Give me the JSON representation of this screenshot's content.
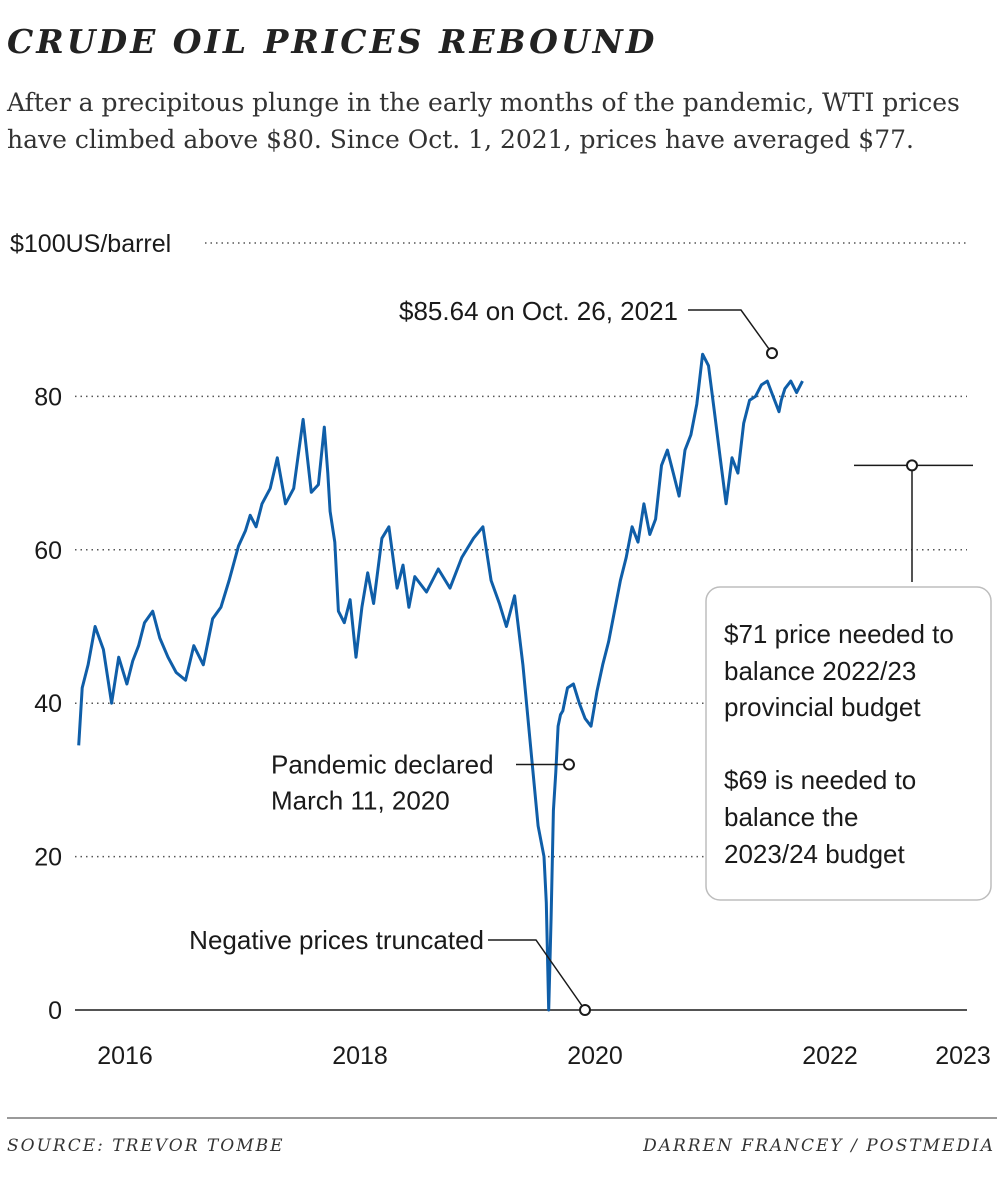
{
  "title": "CRUDE OIL PRICES REBOUND",
  "subtitle": "After a precipitous plunge in the early months of the pandemic, WTI prices have climbed above $80. Since Oct. 1, 2021, prices have averaged $77.",
  "source": "SOURCE: TREVOR TOMBE",
  "credit": "DARREN FRANCEY / POSTMEDIA",
  "colors": {
    "line": "#0f5ea8",
    "grid": "#555555",
    "axis": "#1a1a1a",
    "box_border": "#bdbdbd"
  },
  "chart_data": {
    "type": "line",
    "title": "CRUDE OIL PRICES REBOUND",
    "ylabel": "$100US/barrel",
    "xlabel": "",
    "ylim": [
      0,
      100
    ],
    "xlim": [
      2015.5,
      2023
    ],
    "y_ticks": [
      {
        "value": 0,
        "label": "0"
      },
      {
        "value": 20,
        "label": "20"
      },
      {
        "value": 40,
        "label": "40"
      },
      {
        "value": 60,
        "label": "60"
      },
      {
        "value": 80,
        "label": "80"
      },
      {
        "value": 100,
        "label": "$100US/barrel"
      }
    ],
    "x_ticks": [
      {
        "value": 2016,
        "label": "2016"
      },
      {
        "value": 2018,
        "label": "2018"
      },
      {
        "value": 2020,
        "label": "2020"
      },
      {
        "value": 2022,
        "label": "2022"
      },
      {
        "value": 2023,
        "label": "2023"
      }
    ],
    "grid": "horizontal dotted",
    "series": [
      {
        "x": [
          2015.64,
          2015.67,
          2015.72,
          2015.78,
          2015.85,
          2015.92,
          2015.98,
          2016.05,
          2016.1,
          2016.15,
          2016.2,
          2016.27,
          2016.33,
          2016.4,
          2016.47,
          2016.55,
          2016.62,
          2016.7,
          2016.78,
          2016.85,
          2016.92,
          2017.0,
          2017.06,
          2017.1,
          2017.15,
          2017.2,
          2017.27,
          2017.33,
          2017.4,
          2017.47,
          2017.55,
          2017.62,
          2017.68,
          2017.73,
          2017.76,
          2017.78,
          2017.82,
          2017.85,
          2017.9,
          2017.95,
          2018.0,
          2018.05,
          2018.1,
          2018.15,
          2018.22,
          2018.28,
          2018.35,
          2018.4,
          2018.45,
          2018.5,
          2018.6,
          2018.7,
          2018.8,
          2018.9,
          2019.0,
          2019.08,
          2019.15,
          2019.22,
          2019.28,
          2019.35,
          2019.42,
          2019.5,
          2019.55,
          2019.6,
          2019.62,
          2019.64,
          2019.66,
          2019.68,
          2019.7,
          2019.72,
          2019.74,
          2019.76,
          2019.78,
          2019.8,
          2019.85,
          2019.9,
          2019.95,
          2020.0,
          2020.05,
          2020.1,
          2020.15,
          2020.2,
          2020.25,
          2020.3,
          2020.35,
          2020.4,
          2020.45,
          2020.5,
          2020.55,
          2020.6,
          2020.65,
          2020.7,
          2020.75,
          2020.8,
          2020.85,
          2020.9,
          2020.95,
          2021.0,
          2021.05,
          2021.1,
          2021.15,
          2021.2,
          2021.25,
          2021.3,
          2021.35,
          2021.4,
          2021.45,
          2021.5,
          2021.55,
          2021.6,
          2021.62,
          2021.65,
          2021.7,
          2021.75,
          2021.8
        ],
        "y": [
          34.5,
          42.0,
          45.0,
          50.0,
          47.0,
          40.0,
          46.0,
          42.5,
          45.5,
          47.5,
          50.5,
          52.0,
          48.5,
          46.0,
          44.0,
          43.0,
          47.5,
          45.0,
          51.0,
          52.5,
          56.0,
          60.5,
          62.5,
          64.5,
          63.0,
          66.0,
          68.0,
          72.0,
          66.0,
          68.0,
          77.0,
          67.5,
          68.5,
          76.0,
          70.0,
          65.0,
          61.0,
          52.0,
          50.5,
          53.5,
          46.0,
          52.5,
          57.0,
          53.0,
          61.5,
          63.0,
          55.0,
          58.0,
          52.5,
          56.5,
          54.5,
          57.5,
          55.0,
          59.0,
          61.5,
          63.0,
          56.0,
          53.0,
          50.0,
          54.0,
          45.0,
          32.0,
          24.0,
          20.0,
          14.0,
          0.0,
          12.0,
          26.0,
          31.0,
          37.0,
          38.5,
          39.0,
          40.5,
          42.0,
          42.5,
          40.0,
          38.0,
          37.0,
          41.5,
          45.0,
          48.0,
          52.0,
          56.0,
          59.0,
          63.0,
          61.0,
          66.0,
          62.0,
          64.0,
          71.0,
          73.0,
          70.0,
          67.0,
          73.0,
          75.0,
          79.0,
          85.5,
          84.0,
          78.0,
          72.0,
          66.0,
          72.0,
          70.0,
          76.5,
          79.5,
          80.0,
          81.5,
          82.0,
          80.0,
          78.0,
          79.5,
          81.0,
          82.0,
          80.5,
          82.0
        ]
      }
    ],
    "annotations": [
      {
        "text": "$85.64 on Oct. 26, 2021",
        "x": 2021.82,
        "y": 85.64
      },
      {
        "text": "Pandemic declared\nMarch 11, 2020",
        "x": 2019.71,
        "y": 32
      },
      {
        "text": "Negative prices truncated",
        "x": 2019.75,
        "y": 0
      },
      {
        "text": "$71 price needed to balance 2022/23 provincial budget\n\n$69 is needed to balance the 2023/24 budget",
        "y": 71
      }
    ]
  },
  "labels": {
    "peak_line1": "$85.64 on Oct. 26, 2021",
    "pandemic_line1": "Pandemic declared",
    "pandemic_line2": "March 11, 2020",
    "negative": "Negative prices truncated",
    "box_line1": "$71 price needed to",
    "box_line2": "balance 2022/23",
    "box_line3": "provincial budget",
    "box_line4": "$69 is needed to",
    "box_line5": "balance the",
    "box_line6": "2023/24 budget"
  }
}
